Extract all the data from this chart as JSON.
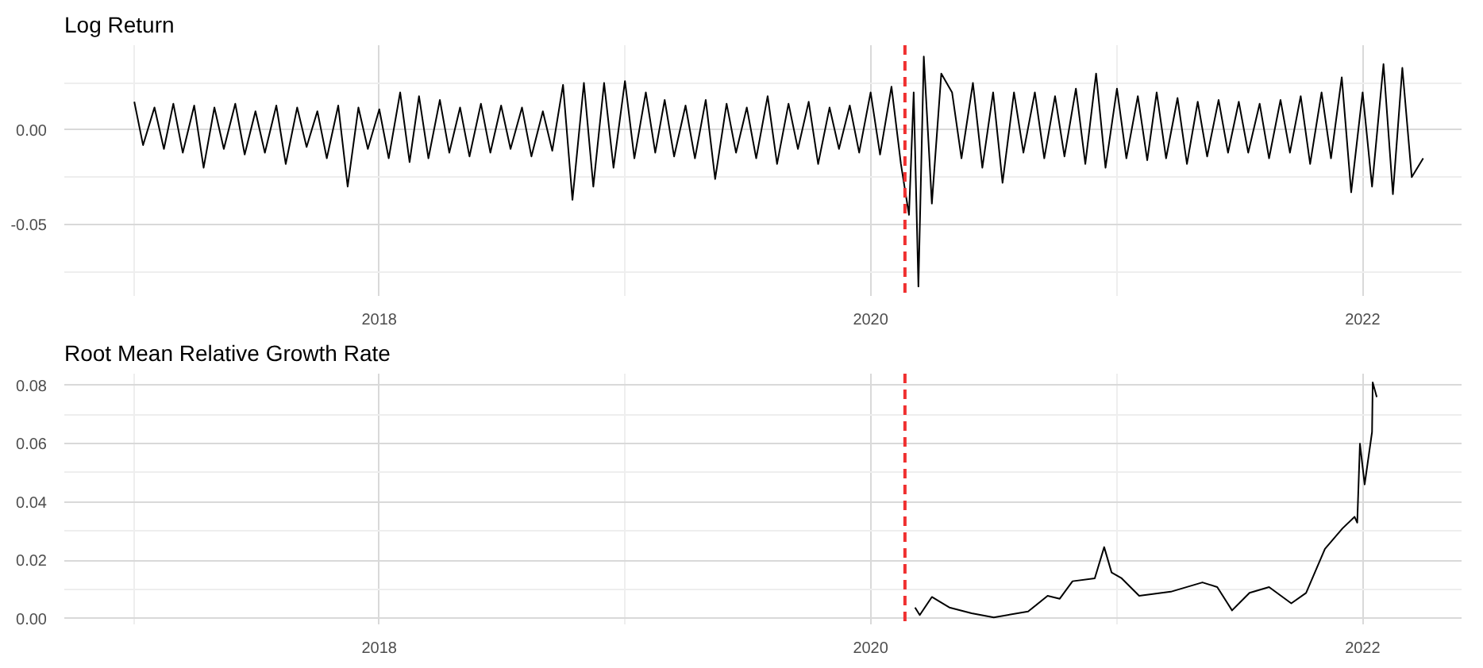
{
  "chart_data": [
    {
      "type": "line",
      "title": "Log Return",
      "xlim": [
        "2016-09-20",
        "2022-05-28"
      ],
      "ylim": [
        -0.088,
        0.045
      ],
      "xticks": [
        {
          "value": "2018-01-01",
          "label": "2018"
        },
        {
          "value": "2020-01-01",
          "label": "2020"
        },
        {
          "value": "2022-01-01",
          "label": "2022"
        }
      ],
      "yticks": [
        {
          "value": -0.05,
          "label": "-0.05"
        },
        {
          "value": 0,
          "label": "0.00"
        }
      ],
      "grid": true,
      "line_style": "solid",
      "ref_lines": [
        {
          "axis": "x",
          "value": "2020-02-21",
          "color": "#f03030",
          "line_style": "dashed"
        }
      ],
      "series": [
        {
          "color": "#000000",
          "x": [
            "2017-01-02",
            "2017-01-15",
            "2017-02-01",
            "2017-02-15",
            "2017-03-01",
            "2017-03-15",
            "2017-04-01",
            "2017-04-15",
            "2017-05-01",
            "2017-05-15",
            "2017-06-01",
            "2017-06-15",
            "2017-07-01",
            "2017-07-15",
            "2017-08-01",
            "2017-08-15",
            "2017-09-01",
            "2017-09-15",
            "2017-10-01",
            "2017-10-15",
            "2017-11-01",
            "2017-11-15",
            "2017-12-01",
            "2017-12-15",
            "2018-01-01",
            "2018-01-15",
            "2018-02-01",
            "2018-02-15",
            "2018-03-01",
            "2018-03-15",
            "2018-04-01",
            "2018-04-15",
            "2018-05-01",
            "2018-05-15",
            "2018-06-01",
            "2018-06-15",
            "2018-07-01",
            "2018-07-15",
            "2018-08-01",
            "2018-08-15",
            "2018-09-01",
            "2018-09-15",
            "2018-10-01",
            "2018-10-15",
            "2018-11-01",
            "2018-11-15",
            "2018-12-01",
            "2018-12-15",
            "2019-01-01",
            "2019-01-15",
            "2019-02-01",
            "2019-02-15",
            "2019-03-01",
            "2019-03-15",
            "2019-04-01",
            "2019-04-15",
            "2019-05-01",
            "2019-05-15",
            "2019-06-01",
            "2019-06-15",
            "2019-07-01",
            "2019-07-15",
            "2019-08-01",
            "2019-08-15",
            "2019-09-01",
            "2019-09-15",
            "2019-10-01",
            "2019-10-15",
            "2019-11-01",
            "2019-11-15",
            "2019-12-01",
            "2019-12-15",
            "2020-01-01",
            "2020-01-15",
            "2020-02-01",
            "2020-02-15",
            "2020-02-27",
            "2020-03-05",
            "2020-03-12",
            "2020-03-20",
            "2020-04-01",
            "2020-04-15",
            "2020-05-01",
            "2020-05-15",
            "2020-06-01",
            "2020-06-15",
            "2020-07-01",
            "2020-07-15",
            "2020-08-01",
            "2020-08-15",
            "2020-09-01",
            "2020-09-15",
            "2020-10-01",
            "2020-10-15",
            "2020-11-01",
            "2020-11-15",
            "2020-12-01",
            "2020-12-15",
            "2021-01-01",
            "2021-01-15",
            "2021-02-01",
            "2021-02-15",
            "2021-03-01",
            "2021-03-15",
            "2021-04-01",
            "2021-04-15",
            "2021-05-01",
            "2021-05-15",
            "2021-06-01",
            "2021-06-15",
            "2021-07-01",
            "2021-07-15",
            "2021-08-01",
            "2021-08-15",
            "2021-09-01",
            "2021-09-15",
            "2021-10-01",
            "2021-10-15",
            "2021-11-01",
            "2021-11-15",
            "2021-12-01",
            "2021-12-15",
            "2022-01-01",
            "2022-01-15",
            "2022-02-01",
            "2022-02-15",
            "2022-03-01",
            "2022-03-15",
            "2022-04-01"
          ],
          "values": [
            0.015,
            -0.008,
            0.012,
            -0.01,
            0.014,
            -0.012,
            0.013,
            -0.02,
            0.012,
            -0.01,
            0.014,
            -0.013,
            0.01,
            -0.012,
            0.013,
            -0.018,
            0.012,
            -0.009,
            0.01,
            -0.015,
            0.013,
            -0.03,
            0.012,
            -0.01,
            0.011,
            -0.015,
            0.02,
            -0.017,
            0.018,
            -0.015,
            0.016,
            -0.012,
            0.012,
            -0.014,
            0.014,
            -0.012,
            0.013,
            -0.01,
            0.012,
            -0.014,
            0.01,
            -0.011,
            0.024,
            -0.037,
            0.025,
            -0.03,
            0.025,
            -0.02,
            0.026,
            -0.015,
            0.02,
            -0.012,
            0.016,
            -0.014,
            0.013,
            -0.015,
            0.016,
            -0.026,
            0.014,
            -0.012,
            0.012,
            -0.015,
            0.018,
            -0.018,
            0.014,
            -0.01,
            0.015,
            -0.018,
            0.012,
            -0.01,
            0.013,
            -0.012,
            0.02,
            -0.013,
            0.023,
            -0.018,
            -0.045,
            0.02,
            -0.083,
            0.039,
            -0.039,
            0.03,
            0.02,
            -0.015,
            0.025,
            -0.02,
            0.02,
            -0.028,
            0.02,
            -0.012,
            0.02,
            -0.015,
            0.018,
            -0.014,
            0.022,
            -0.018,
            0.03,
            -0.02,
            0.022,
            -0.015,
            0.018,
            -0.016,
            0.02,
            -0.015,
            0.017,
            -0.018,
            0.015,
            -0.014,
            0.016,
            -0.012,
            0.015,
            -0.012,
            0.014,
            -0.015,
            0.016,
            -0.012,
            0.018,
            -0.018,
            0.02,
            -0.015,
            0.028,
            -0.033,
            0.02,
            -0.03,
            0.035,
            -0.034,
            0.033,
            -0.025,
            -0.015
          ]
        }
      ]
    },
    {
      "type": "line",
      "title": "Root Mean Relative Growth Rate",
      "xlim": [
        "2016-09-20",
        "2022-05-28"
      ],
      "ylim": [
        -0.002,
        0.084
      ],
      "xticks": [
        {
          "value": "2018-01-01",
          "label": "2018"
        },
        {
          "value": "2020-01-01",
          "label": "2020"
        },
        {
          "value": "2022-01-01",
          "label": "2022"
        }
      ],
      "yticks": [
        {
          "value": 0,
          "label": "0.00"
        },
        {
          "value": 0.02,
          "label": "0.02"
        },
        {
          "value": 0.04,
          "label": "0.04"
        },
        {
          "value": 0.06,
          "label": "0.06"
        },
        {
          "value": 0.08,
          "label": "0.08"
        }
      ],
      "grid": true,
      "line_style": "solid",
      "ref_lines": [
        {
          "axis": "x",
          "value": "2020-02-21",
          "color": "#f03030",
          "line_style": "dashed"
        }
      ],
      "series": [
        {
          "color": "#000000",
          "x": [
            "2020-03-07",
            "2020-03-14",
            "2020-04-01",
            "2020-04-27",
            "2020-05-30",
            "2020-07-02",
            "2020-08-22",
            "2020-09-20",
            "2020-10-08",
            "2020-10-27",
            "2020-11-29",
            "2020-12-13",
            "2020-12-24",
            "2021-01-08",
            "2021-02-03",
            "2021-03-22",
            "2021-05-08",
            "2021-05-30",
            "2021-06-21",
            "2021-07-17",
            "2021-08-15",
            "2021-09-17",
            "2021-10-09",
            "2021-11-06",
            "2021-12-02",
            "2021-12-20",
            "2021-12-24",
            "2021-12-28",
            "2022-01-04",
            "2022-01-15",
            "2022-01-16",
            "2022-01-22"
          ],
          "values": [
            0.0038,
            0.0012,
            0.0074,
            0.0038,
            0.0018,
            0.0004,
            0.0024,
            0.0078,
            0.0068,
            0.0128,
            0.0138,
            0.0245,
            0.0158,
            0.0138,
            0.0078,
            0.0092,
            0.0124,
            0.0108,
            0.0028,
            0.0088,
            0.0108,
            0.0052,
            0.0088,
            0.0239,
            0.0309,
            0.0349,
            0.0329,
            0.06,
            0.046,
            0.064,
            0.081,
            0.076
          ]
        }
      ]
    }
  ]
}
